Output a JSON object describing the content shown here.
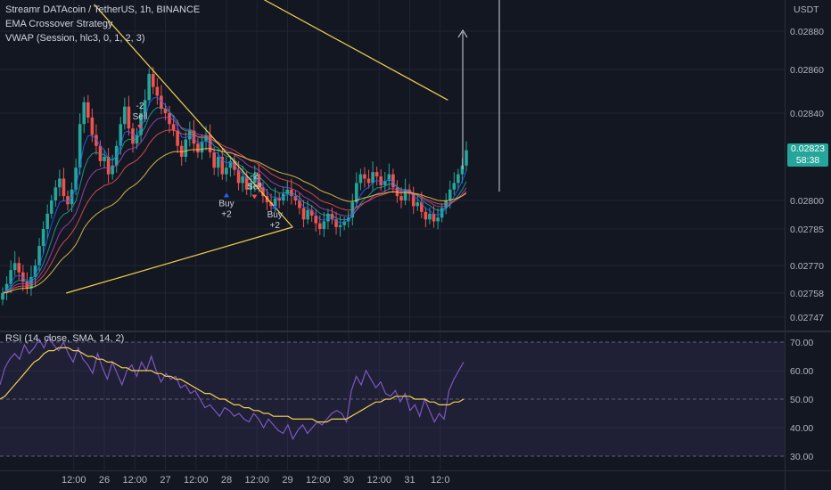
{
  "header": {
    "title": "Streamr DATAcoin / TetherUS, 1h, BINANCE",
    "strategy": "EMA Crossover Strategy",
    "vwap": "VWAP (Session, hlc3, 0, 1, 2, 3)"
  },
  "rsi_label": "RSI (14, close, SMA, 14, 2)",
  "currency": "USDT",
  "last_price": {
    "value": "0.02823",
    "countdown": "58:38"
  },
  "colors": {
    "background": "#131722",
    "up": "#26a69a",
    "down": "#ef5350",
    "trendline": "#f2d04e",
    "rsi": "#7e57c2",
    "rsi_ma": "#f2d04e",
    "badge": "#26a69a"
  },
  "signals": [
    {
      "text_top": "-2",
      "text_bottom": "Sell",
      "type": "sell",
      "x": "2022-01-26 14:00",
      "y": 0.02842
    },
    {
      "text_top": "Buy",
      "text_bottom": "+2",
      "type": "buy",
      "x": "2022-01-28 00:00",
      "y": 0.02797
    },
    {
      "text_top": "-2",
      "text_bottom": "Sell",
      "type": "sell",
      "x": "2022-01-28 11:00",
      "y": 0.0281
    },
    {
      "text_top": "Buy",
      "text_bottom": "+2",
      "type": "buy",
      "x": "2022-01-28 19:00",
      "y": 0.02791
    }
  ],
  "chart_data": [
    {
      "type": "candlestick",
      "y_unit": "USDT",
      "y_ticks": [
        0.0288,
        0.0286,
        0.0284,
        0.028,
        0.02785,
        0.0277,
        0.02758,
        0.02747
      ],
      "y_tick_labels": [
        "0.02880",
        "0.02860",
        "0.02840",
        "0.02800",
        "0.02785",
        "0.02770",
        "0.02758",
        "0.02747"
      ],
      "x_tick_labels": [
        "12:00",
        "26",
        "12:00",
        "27",
        "12:00",
        "28",
        "12:00",
        "29",
        "12:00",
        "30",
        "12:00",
        "31",
        "12:0"
      ],
      "x_ticks": [
        "2022-01-25 12:00",
        "2022-01-26 00:00",
        "2022-01-26 12:00",
        "2022-01-27 00:00",
        "2022-01-27 12:00",
        "2022-01-28 00:00",
        "2022-01-28 12:00",
        "2022-01-29 00:00",
        "2022-01-29 12:00",
        "2022-01-30 00:00",
        "2022-01-30 12:00",
        "2022-01-31 00:00",
        "2022-01-31 12:00"
      ],
      "closes": [
        0.02758,
        0.02762,
        0.02768,
        0.02771,
        0.02767,
        0.02763,
        0.0276,
        0.02765,
        0.0277,
        0.02778,
        0.02785,
        0.02793,
        0.028,
        0.02806,
        0.0281,
        0.02802,
        0.02798,
        0.02805,
        0.02815,
        0.02835,
        0.02845,
        0.02838,
        0.0283,
        0.02825,
        0.02818,
        0.0282,
        0.02812,
        0.02816,
        0.02825,
        0.02835,
        0.02843,
        0.02833,
        0.02826,
        0.0283,
        0.0284,
        0.02846,
        0.02858,
        0.02852,
        0.02848,
        0.02842,
        0.0284,
        0.02835,
        0.02832,
        0.02825,
        0.0282,
        0.02828,
        0.02832,
        0.02826,
        0.02822,
        0.02827,
        0.0283,
        0.02822,
        0.02815,
        0.0282,
        0.02812,
        0.02815,
        0.02818,
        0.02814,
        0.02808,
        0.02811,
        0.02805,
        0.02808,
        0.02812,
        0.02806,
        0.02802,
        0.02799,
        0.02797,
        0.02801,
        0.028,
        0.02803,
        0.02805,
        0.02802,
        0.028,
        0.02796,
        0.0279,
        0.02795,
        0.02792,
        0.02788,
        0.02785,
        0.02789,
        0.02793,
        0.0279,
        0.02786,
        0.02787,
        0.02789,
        0.02791,
        0.02799,
        0.02808,
        0.02812,
        0.0281,
        0.02808,
        0.02813,
        0.02811,
        0.02807,
        0.02809,
        0.02812,
        0.02806,
        0.02802,
        0.028,
        0.02805,
        0.02803,
        0.02797,
        0.02799,
        0.02794,
        0.0279,
        0.02793,
        0.02789,
        0.02791,
        0.02796,
        0.028,
        0.02805,
        0.02808,
        0.02812,
        0.02816,
        0.02823
      ],
      "trendlines": [
        {
          "x0": "2022-01-25 20:00",
          "y0": 0.02894,
          "x1": "2022-01-29 02:00",
          "y1": 0.02786
        },
        {
          "x0": "2022-01-25 09:00",
          "y0": 0.02758,
          "x1": "2022-01-29 02:00",
          "y1": 0.02786
        },
        {
          "x0": "2022-01-28 03:00",
          "y0": 0.02905,
          "x1": "2022-01-31 15:00",
          "y1": 0.02846
        }
      ]
    },
    {
      "type": "line",
      "ylim": [
        30,
        70
      ],
      "y_ticks": [
        70,
        60,
        50,
        40,
        30
      ],
      "y_tick_labels": [
        "70.00",
        "60.00",
        "50.00",
        "40.00",
        "30.00"
      ],
      "series": [
        {
          "values": [
            55,
            61,
            64,
            66,
            64,
            69,
            66,
            68,
            71,
            68,
            72,
            69,
            67,
            70,
            66,
            63,
            68,
            64,
            62,
            59,
            66,
            61,
            57,
            63,
            59,
            55,
            60,
            62,
            58,
            63,
            60,
            65,
            60,
            56,
            59,
            57,
            58,
            54,
            55,
            52,
            53,
            50,
            47,
            48,
            46,
            44,
            47,
            46,
            44,
            45,
            43,
            42,
            45,
            43,
            40,
            43,
            41,
            39,
            38,
            41,
            36,
            39,
            41,
            38,
            40,
            42,
            41,
            43,
            45,
            46,
            45,
            42,
            53,
            58,
            55,
            60,
            57,
            54,
            56,
            52,
            51,
            53,
            49,
            52,
            46,
            48,
            44,
            50,
            46,
            42,
            45,
            43,
            53,
            57,
            60,
            63
          ]
        },
        {
          "values": [
            50,
            51,
            53,
            55,
            57,
            59,
            61,
            63,
            64,
            66,
            67,
            67,
            68,
            68,
            68,
            67,
            67,
            66,
            65,
            65,
            64,
            64,
            63,
            63,
            62,
            61,
            61,
            60,
            60,
            60,
            60,
            60,
            59,
            59,
            58,
            58,
            57,
            57,
            56,
            55,
            54,
            53,
            52,
            52,
            51,
            50,
            50,
            49,
            48,
            48,
            47,
            47,
            46,
            46,
            45,
            45,
            44,
            44,
            44,
            44,
            43,
            43,
            43,
            43,
            43,
            42,
            42,
            42,
            43,
            43,
            43,
            43,
            44,
            45,
            46,
            47,
            48,
            49,
            49,
            50,
            50,
            51,
            51,
            51,
            51,
            50,
            50,
            50,
            49,
            49,
            48,
            48,
            48,
            49,
            49,
            50
          ]
        }
      ]
    }
  ]
}
